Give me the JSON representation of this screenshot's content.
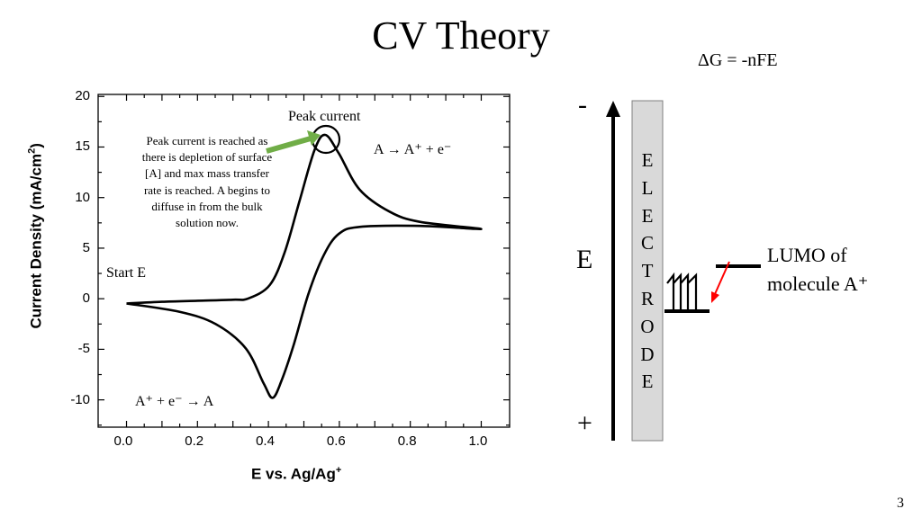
{
  "slide": {
    "title": "CV Theory",
    "equation": "ΔG = -nFE",
    "page_number": "3"
  },
  "chart_data": {
    "type": "line",
    "title": "",
    "xlabel": "E vs. Ag/Ag",
    "xlabel_sup": "+",
    "ylabel": "Current Density (mA/cm",
    "ylabel_sup": "2",
    "ylabel_end": ")",
    "xlim": [
      -0.08,
      1.08
    ],
    "ylim": [
      -12.7,
      20.2
    ],
    "xticks": [
      "0.0",
      "0.2",
      "0.4",
      "0.6",
      "0.8",
      "1.0"
    ],
    "yticks": [
      "20",
      "15",
      "10",
      "5",
      "0",
      "-5",
      "-10"
    ],
    "grid": false,
    "series": [
      {
        "values": [
          [
            0.0,
            -0.47
          ],
          [
            0.1,
            -0.3
          ],
          [
            0.2,
            -0.2
          ],
          [
            0.3,
            -0.1
          ],
          [
            0.344,
            0.03
          ],
          [
            0.404,
            1.36
          ],
          [
            0.446,
            4.6
          ],
          [
            0.488,
            9.7
          ],
          [
            0.53,
            14.7
          ],
          [
            0.56,
            16.2
          ],
          [
            0.598,
            14.4
          ],
          [
            0.657,
            10.8
          ],
          [
            0.742,
            8.6
          ],
          [
            0.827,
            7.6
          ],
          [
            1.0,
            6.9
          ],
          [
            0.827,
            7.2
          ],
          [
            0.657,
            7.1
          ],
          [
            0.598,
            6.4
          ],
          [
            0.556,
            4.3
          ],
          [
            0.513,
            0.5
          ],
          [
            0.471,
            -4.6
          ],
          [
            0.437,
            -8.1
          ],
          [
            0.412,
            -9.8
          ],
          [
            0.387,
            -8.4
          ],
          [
            0.336,
            -4.9
          ],
          [
            0.251,
            -2.5
          ],
          [
            0.15,
            -1.3
          ],
          [
            0.0,
            -0.47
          ]
        ]
      }
    ],
    "annotations": {
      "peak_label": "Peak current",
      "note": "Peak current is reached as there is depletion of surface [A] and max mass transfer rate is reached. A begins to diffuse in from the bulk solution now.",
      "oxidation": "A → A⁺ + e⁻",
      "reduction": "A⁺ + e⁻ → A",
      "start": "Start E",
      "arrow_color": "#70ad47"
    }
  },
  "diagram": {
    "minus": "-",
    "plus": "+",
    "axis_label": "E",
    "electrode_letters": [
      "E",
      "L",
      "E",
      "C",
      "T",
      "R",
      "O",
      "D",
      "E"
    ],
    "lumo_line1": "LUMO of",
    "lumo_line2": "molecule A⁺",
    "electrode_fill": "#d9d9d9",
    "transfer_arrow_color": "#ff0000"
  }
}
